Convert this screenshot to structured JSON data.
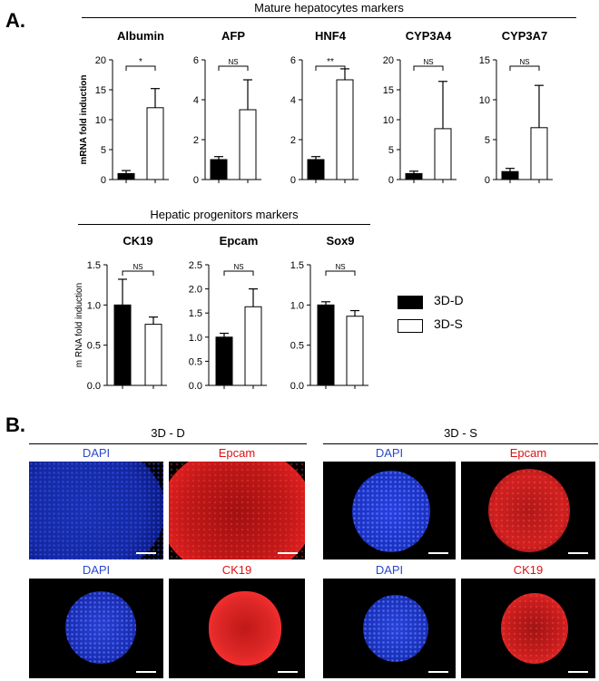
{
  "panels": {
    "A": {
      "letter": "A.",
      "group_mature": "Mature hepatocytes markers",
      "group_progenitor": "Hepatic progenitors markers"
    },
    "B": {
      "letter": "B.",
      "left_title": "3D - D",
      "right_title": "3D - S"
    }
  },
  "legend": [
    {
      "label": "3D-D",
      "fill": "#000000"
    },
    {
      "label": "3D-S",
      "fill": "#ffffff"
    }
  ],
  "colors": {
    "bar_dark": "#000000",
    "bar_light": "#ffffff",
    "dapi": "#2a48c8",
    "marker_red": "#e01010"
  },
  "chart_data": [
    {
      "type": "bar",
      "title": "Albumin",
      "ylabel": "mRNA fold induction",
      "categories": [
        "3D-D",
        "3D-S"
      ],
      "values": [
        1.0,
        12.0
      ],
      "errors": [
        0.5,
        3.2
      ],
      "ylim": [
        0,
        20
      ],
      "yticks": [
        "0",
        "5",
        "10",
        "15",
        "20"
      ],
      "significance": "*"
    },
    {
      "type": "bar",
      "title": "AFP",
      "ylabel": "",
      "categories": [
        "3D-D",
        "3D-S"
      ],
      "values": [
        1.0,
        3.5
      ],
      "errors": [
        0.15,
        1.5
      ],
      "ylim": [
        0,
        6
      ],
      "yticks": [
        "0",
        "2",
        "4",
        "6"
      ],
      "significance": "NS"
    },
    {
      "type": "bar",
      "title": "HNF4",
      "ylabel": "",
      "categories": [
        "3D-D",
        "3D-S"
      ],
      "values": [
        1.0,
        5.0
      ],
      "errors": [
        0.15,
        0.55
      ],
      "ylim": [
        0,
        6
      ],
      "yticks": [
        "0",
        "2",
        "4",
        "6"
      ],
      "significance": "**"
    },
    {
      "type": "bar",
      "title": "CYP3A4",
      "ylabel": "",
      "categories": [
        "3D-D",
        "3D-S"
      ],
      "values": [
        1.0,
        8.5
      ],
      "errors": [
        0.4,
        7.9
      ],
      "ylim": [
        0,
        20
      ],
      "yticks": [
        "0",
        "5",
        "10",
        "15",
        "20"
      ],
      "significance": "NS"
    },
    {
      "type": "bar",
      "title": "CYP3A7",
      "ylabel": "",
      "categories": [
        "3D-D",
        "3D-S"
      ],
      "values": [
        1.0,
        6.5
      ],
      "errors": [
        0.4,
        5.3
      ],
      "ylim": [
        0,
        15
      ],
      "yticks": [
        "0",
        "5",
        "10",
        "15"
      ],
      "significance": "NS"
    },
    {
      "type": "bar",
      "title": "CK19",
      "ylabel": "m RNA fold induction",
      "categories": [
        "3D-D",
        "3D-S"
      ],
      "values": [
        1.0,
        0.76
      ],
      "errors": [
        0.32,
        0.09
      ],
      "ylim": [
        0,
        1.5
      ],
      "yticks": [
        "0.0",
        "0.5",
        "1.0",
        "1.5"
      ],
      "significance": "NS"
    },
    {
      "type": "bar",
      "title": "Epcam",
      "ylabel": "",
      "categories": [
        "3D-D",
        "3D-S"
      ],
      "values": [
        1.0,
        1.63
      ],
      "errors": [
        0.08,
        0.37
      ],
      "ylim": [
        0,
        2.5
      ],
      "yticks": [
        "0.0",
        "0.5",
        "1.0",
        "1.5",
        "2.0",
        "2.5"
      ],
      "significance": "NS"
    },
    {
      "type": "bar",
      "title": "Sox9",
      "ylabel": "",
      "categories": [
        "3D-D",
        "3D-S"
      ],
      "values": [
        1.0,
        0.86
      ],
      "errors": [
        0.04,
        0.07
      ],
      "ylim": [
        0,
        1.5
      ],
      "yticks": [
        "0.0",
        "0.5",
        "1.0",
        "1.5"
      ],
      "significance": "NS"
    }
  ],
  "micrographs": [
    {
      "label": "DAPI",
      "channel": "dapi"
    },
    {
      "label": "Epcam",
      "channel": "red"
    },
    {
      "label": "DAPI",
      "channel": "dapi"
    },
    {
      "label": "Epcam",
      "channel": "red"
    },
    {
      "label": "DAPI",
      "channel": "dapi"
    },
    {
      "label": "CK19",
      "channel": "red"
    },
    {
      "label": "DAPI",
      "channel": "dapi"
    },
    {
      "label": "CK19",
      "channel": "red"
    }
  ]
}
